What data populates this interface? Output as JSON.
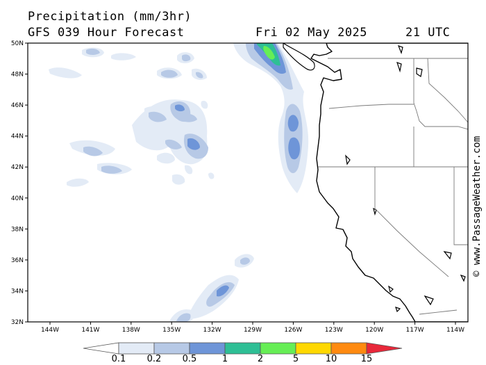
{
  "header": {
    "title": "Precipitation (mm/3hr)",
    "subtitle": "GFS 039 Hour Forecast",
    "date": "Fri 02 May 2025",
    "time": "21 UTC"
  },
  "credit": "© www.PassageWeather.com",
  "map": {
    "lat_labels": [
      "50N",
      "48N",
      "46N",
      "44N",
      "42N",
      "40N",
      "38N",
      "36N",
      "34N",
      "32N"
    ],
    "lon_labels": [
      "144W",
      "141W",
      "138W",
      "135W",
      "132W",
      "129W",
      "126W",
      "123W",
      "120W",
      "117W",
      "114W"
    ]
  },
  "legend": {
    "labels": [
      "0.1",
      "0.2",
      "0.5",
      "1",
      "2",
      "5",
      "10",
      "15"
    ],
    "colors": [
      "#ffffff",
      "#e3ebf6",
      "#b7c9e6",
      "#6e95d8",
      "#2ebf95",
      "#66ee55",
      "#ffd800",
      "#ff8a10",
      "#e8283a"
    ]
  }
}
